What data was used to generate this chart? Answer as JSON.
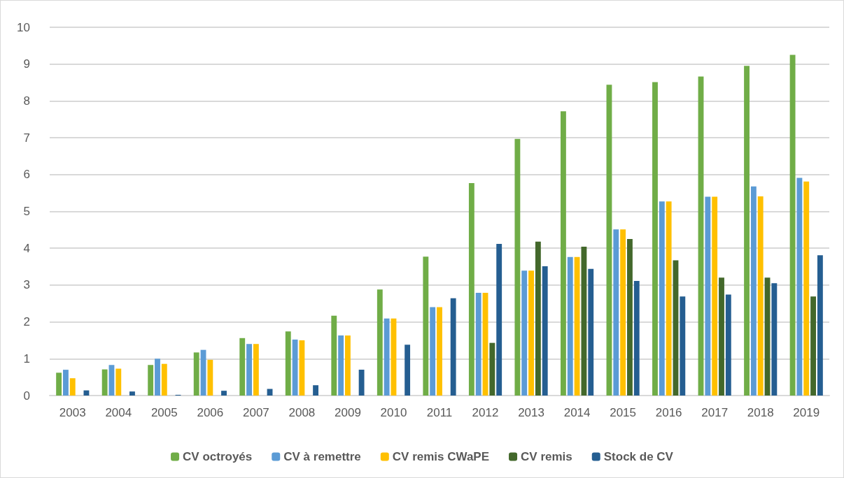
{
  "chart_data": {
    "type": "bar",
    "categories": [
      "2003",
      "2004",
      "2005",
      "2006",
      "2007",
      "2008",
      "2009",
      "2010",
      "2011",
      "2012",
      "2013",
      "2014",
      "2015",
      "2016",
      "2017",
      "2018",
      "2019"
    ],
    "series": [
      {
        "name": "CV octroyés",
        "color": "#70ad47",
        "values": [
          0.62,
          0.71,
          0.83,
          1.17,
          1.56,
          1.74,
          2.17,
          2.88,
          3.77,
          5.77,
          6.97,
          7.72,
          8.44,
          8.51,
          8.66,
          8.95,
          9.25
        ]
      },
      {
        "name": "CV à remettre",
        "color": "#5b9bd5",
        "values": [
          0.7,
          0.83,
          1.0,
          1.24,
          1.4,
          1.52,
          1.63,
          2.09,
          2.4,
          2.79,
          3.39,
          3.76,
          4.51,
          5.27,
          5.4,
          5.68,
          5.91
        ]
      },
      {
        "name": "CV remis CWaPE",
        "color": "#ffc000",
        "values": [
          0.47,
          0.73,
          0.86,
          0.97,
          1.4,
          1.5,
          1.63,
          2.09,
          2.4,
          2.79,
          3.39,
          3.76,
          4.51,
          5.27,
          5.4,
          5.41,
          5.81
        ]
      },
      {
        "name": "CV remis",
        "color": "#43682b",
        "values": [
          null,
          null,
          null,
          null,
          null,
          null,
          null,
          null,
          null,
          1.43,
          4.18,
          4.04,
          4.25,
          3.67,
          3.2,
          3.2,
          2.69
        ]
      },
      {
        "name": "Stock de CV",
        "color": "#255e91",
        "values": [
          0.14,
          0.11,
          0.02,
          0.13,
          0.18,
          0.28,
          0.7,
          1.38,
          2.64,
          4.12,
          3.51,
          3.44,
          3.11,
          2.69,
          2.74,
          3.05,
          3.81
        ]
      }
    ],
    "ylim": [
      0,
      10
    ],
    "yticks": [
      0,
      1,
      2,
      3,
      4,
      5,
      6,
      7,
      8,
      9,
      10
    ],
    "grid": "y",
    "legend": "bottom"
  }
}
